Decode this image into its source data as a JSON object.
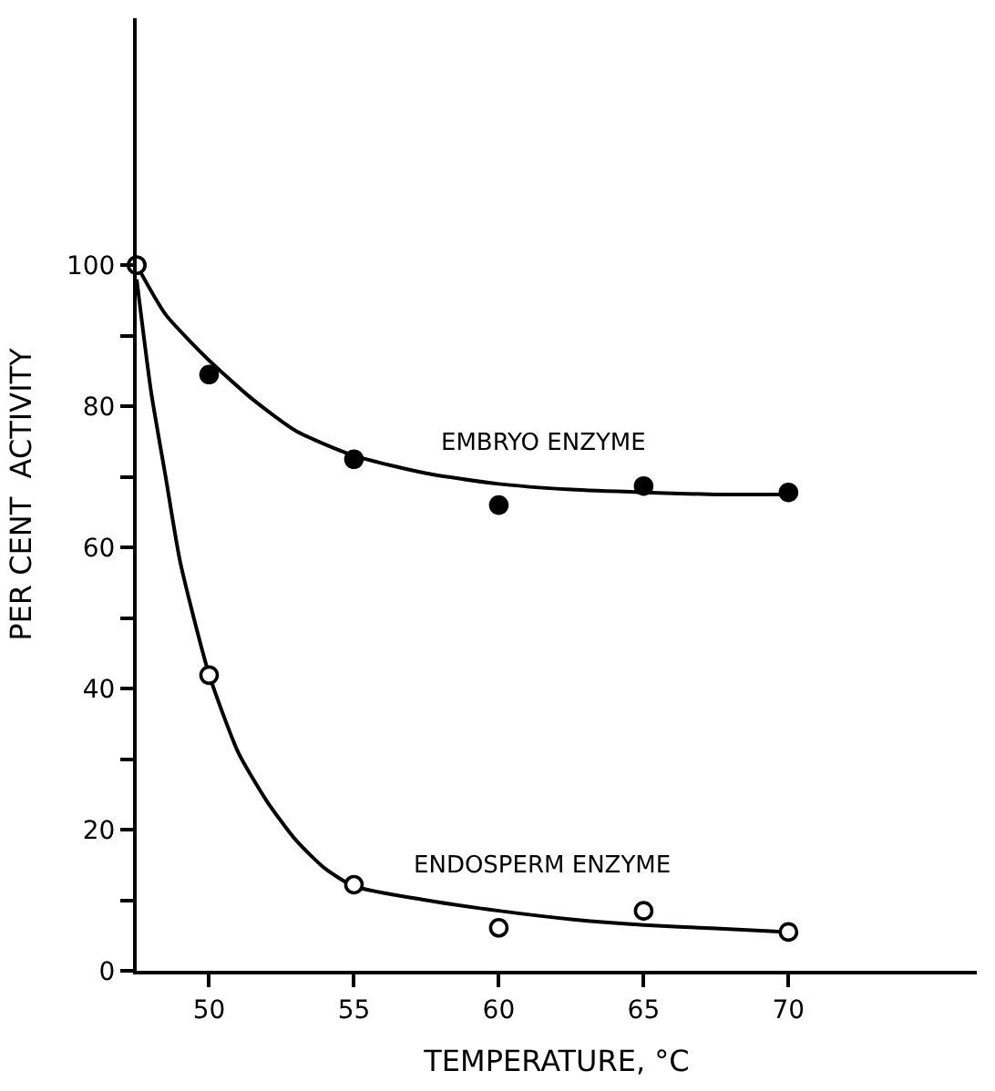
{
  "chart_data": {
    "type": "scatter",
    "xlabel": "TEMPERATURE, °C",
    "ylabel": "PER CENT  ACTIVITY",
    "xlim": [
      47.5,
      76.5
    ],
    "ylim": [
      0,
      135
    ],
    "xticks": [
      50,
      55,
      60,
      65,
      70
    ],
    "yticks": [
      0,
      {
        "value": 10,
        "label": null
      },
      20,
      {
        "value": 30,
        "label": null
      },
      40,
      {
        "value": 50,
        "label": null
      },
      60,
      {
        "value": 70,
        "label": null
      },
      80,
      {
        "value": 90,
        "label": null
      },
      100
    ],
    "legend": false,
    "marker": "circle",
    "series": [
      {
        "type": "line",
        "color": "#000000",
        "marker": "none",
        "line_style": "solid",
        "x": [
          47.5,
          48.5,
          50,
          51.5,
          53,
          55,
          57.5,
          60,
          62.5,
          65,
          67.5,
          70
        ],
        "values": [
          100,
          93,
          86.5,
          81,
          76.5,
          73,
          70.5,
          69,
          68.2,
          67.8,
          67.5,
          67.5
        ]
      },
      {
        "type": "line",
        "color": "#000000",
        "marker": "none",
        "line_style": "solid",
        "x": [
          47.5,
          48,
          48.5,
          49,
          50,
          51,
          52,
          53,
          54,
          55,
          57.5,
          60,
          62.5,
          65,
          67.5,
          70
        ],
        "values": [
          98,
          82,
          70,
          58,
          42,
          31,
          24,
          18.5,
          14.5,
          12,
          10,
          8.5,
          7.3,
          6.5,
          6,
          5.5
        ]
      },
      {
        "name": "EMBRYO ENZYME",
        "color": "#000000",
        "x": [
          47.5,
          50,
          55,
          60,
          65,
          70
        ],
        "values": [
          100,
          84.5,
          72.5,
          66,
          68.7,
          67.8
        ]
      },
      {
        "name": "ENDOSPERM ENZYME",
        "color": "#ffffff",
        "x": [
          47.5,
          50,
          55,
          60,
          65,
          70
        ],
        "values": [
          100,
          41.9,
          12.2,
          6.1,
          8.5,
          5.5
        ]
      }
    ]
  }
}
